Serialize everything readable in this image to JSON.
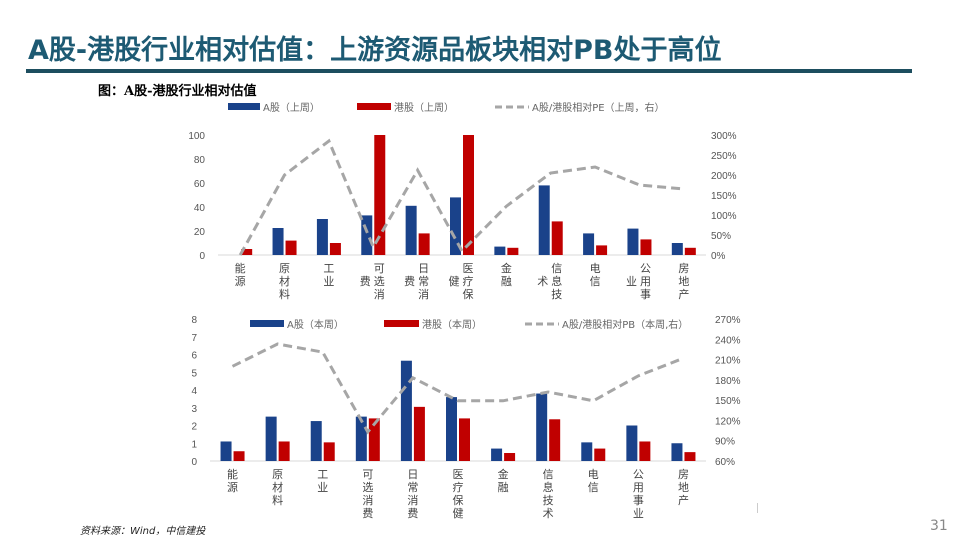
{
  "slide": {
    "title": "A股-港股行业相对估值：上游资源品板块相对PB处于高位",
    "figure_title": "图：A股-港股行业相对估值",
    "source": "资料来源：Wind，中信建投",
    "page_number": "31"
  },
  "colors": {
    "title": "#1d5a73",
    "rule": "#1d4e5f",
    "a_share": "#1a428a",
    "h_share": "#c00000",
    "relative_line": "#a6a6a6"
  },
  "chart_data": [
    {
      "type": "bar+line",
      "title": "A股-港股行业相对估值（PE，上周）",
      "categories": [
        "能源",
        "原材料",
        "工业",
        "可选消费",
        "日常消费",
        "医疗保健",
        "金融",
        "信息技术",
        "电信",
        "公用事业",
        "房地产"
      ],
      "category_labels_upper": [
        [
          "能",
          "源"
        ],
        [
          "原",
          "材",
          "料"
        ],
        [
          "工",
          "业"
        ],
        [
          "可",
          "选",
          "消",
          "费"
        ],
        [
          "日",
          "常",
          "消",
          "费"
        ],
        [
          "医",
          "疗",
          "保",
          "健"
        ],
        [
          "金",
          "融"
        ],
        [
          "信",
          "息",
          "技",
          "术"
        ],
        [
          "电",
          "信"
        ],
        [
          "公",
          "用",
          "事",
          "业"
        ],
        [
          "房",
          "地",
          "产"
        ]
      ],
      "legend": [
        "A股（上周）",
        "港股（上周）",
        "A股/港股相对PE（上周，右）"
      ],
      "series": [
        {
          "name": "A股（上周）",
          "axis": "left",
          "type": "bar",
          "values": [
            0,
            22.5,
            30,
            33,
            41,
            48,
            7,
            58,
            18,
            22,
            10
          ]
        },
        {
          "name": "港股（上周）",
          "axis": "left",
          "type": "bar",
          "values": [
            5,
            12,
            10,
            100,
            18,
            100,
            6,
            28,
            8,
            13,
            6
          ]
        },
        {
          "name": "A股/港股相对PE（上周，右）",
          "axis": "right",
          "type": "line",
          "unit": "%",
          "values": [
            0,
            200,
            285,
            20,
            212,
            10,
            122,
            205,
            220,
            175,
            165
          ]
        }
      ],
      "ylim_left": [
        0,
        100
      ],
      "yticks_left": [
        "0",
        "20",
        "40",
        "60",
        "80",
        "100"
      ],
      "ylim_right": [
        0,
        300
      ],
      "yticks_right": [
        "0%",
        "50%",
        "100%",
        "150%",
        "200%",
        "250%",
        "300%"
      ],
      "legend_position": "top",
      "grid": false
    },
    {
      "type": "bar+line",
      "title": "A股-港股行业相对估值（PB，本周）",
      "categories": [
        "能源",
        "原材料",
        "工业",
        "可选消费",
        "日常消费",
        "医疗保健",
        "金融",
        "信息技术",
        "电信",
        "公用事业",
        "房地产"
      ],
      "legend": [
        "A股（本周）",
        "港股（本周）",
        "A股/港股相对PB（本周,右）"
      ],
      "series": [
        {
          "name": "A股（本周）",
          "axis": "left",
          "type": "bar",
          "values": [
            1.1,
            2.5,
            2.25,
            2.5,
            5.65,
            3.6,
            0.7,
            3.8,
            1.05,
            2.0,
            1.0
          ]
        },
        {
          "name": "港股（本周）",
          "axis": "left",
          "type": "bar",
          "values": [
            0.55,
            1.1,
            1.05,
            2.4,
            3.05,
            2.4,
            0.45,
            2.35,
            0.7,
            1.1,
            0.5
          ]
        },
        {
          "name": "A股/港股相对PB（本周,右）",
          "axis": "right",
          "type": "line",
          "unit": "%",
          "values": [
            200,
            233,
            221,
            103,
            183,
            149,
            149,
            162,
            149,
            186,
            212
          ]
        }
      ],
      "ylim_left": [
        0,
        8
      ],
      "yticks_left": [
        "0",
        "1",
        "2",
        "3",
        "4",
        "5",
        "6",
        "7",
        "8"
      ],
      "ylim_right": [
        60,
        270
      ],
      "yticks_right": [
        "60%",
        "90%",
        "120%",
        "150%",
        "180%",
        "210%",
        "240%",
        "270%"
      ],
      "legend_position": "top",
      "grid": false
    }
  ]
}
